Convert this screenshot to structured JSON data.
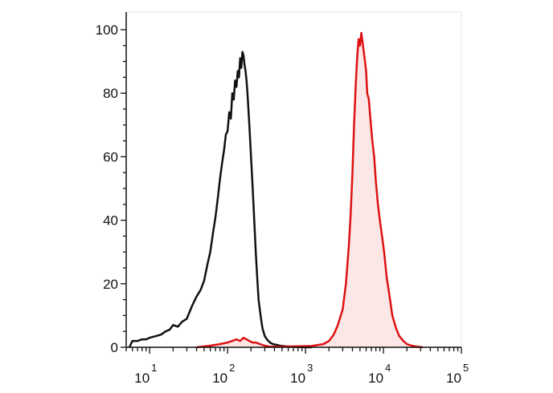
{
  "chart_data": {
    "type": "area",
    "title": "",
    "xlabel": "",
    "ylabel": "",
    "x_scale": "log",
    "xlim": [
      5,
      100000
    ],
    "ylim": [
      0,
      100
    ],
    "x_tick_labels": [
      {
        "base": "10",
        "exp": "1",
        "value": 10
      },
      {
        "base": "10",
        "exp": "2",
        "value": 100
      },
      {
        "base": "10",
        "exp": "3",
        "value": 1000
      },
      {
        "base": "10",
        "exp": "4",
        "value": 10000
      },
      {
        "base": "10",
        "exp": "5",
        "value": 100000
      }
    ],
    "y_ticks": [
      "0",
      "20",
      "40",
      "60",
      "80",
      "100"
    ],
    "grid": false,
    "legend": "none",
    "series": [
      {
        "color": "#111111",
        "fill": "none",
        "x": [
          5.5,
          6,
          7,
          8,
          9,
          10,
          12,
          14,
          16,
          18,
          20,
          23,
          26,
          30,
          35,
          40,
          45,
          50,
          55,
          60,
          65,
          70,
          75,
          80,
          85,
          90,
          95,
          100,
          105,
          110,
          115,
          120,
          125,
          130,
          135,
          140,
          145,
          150,
          155,
          160,
          165,
          170,
          175,
          180,
          190,
          200,
          210,
          220,
          230,
          240,
          250,
          265,
          280,
          300,
          320,
          350,
          380,
          420,
          470,
          550,
          650,
          800,
          1000,
          1200
        ],
        "y": [
          0,
          2,
          2,
          2.5,
          2.5,
          3,
          3.5,
          4,
          5,
          5.5,
          7,
          6.5,
          8,
          9,
          13,
          16,
          18,
          21,
          26,
          30,
          36,
          41,
          47,
          53,
          58,
          62,
          67,
          68,
          74,
          72,
          80,
          78,
          84,
          82,
          87,
          85,
          91,
          88,
          93,
          92,
          89,
          87,
          84,
          80,
          70,
          60,
          50,
          40,
          30,
          22,
          15,
          10,
          6,
          3.5,
          2.5,
          1.5,
          1,
          0.8,
          0.5,
          0.3,
          0.2,
          0.1,
          0,
          0
        ]
      },
      {
        "color": "#dd1111",
        "fill": "rgba(240,120,120,0.18)",
        "x": [
          40,
          60,
          80,
          100,
          115,
          130,
          145,
          160,
          175,
          190,
          210,
          230,
          260,
          300,
          350,
          500,
          800,
          1200,
          1700,
          2000,
          2300,
          2600,
          3000,
          3300,
          3600,
          3800,
          4000,
          4200,
          4400,
          4600,
          4800,
          5000,
          5200,
          5400,
          5600,
          5800,
          6000,
          6200,
          6500,
          6800,
          7200,
          7600,
          8000,
          8500,
          9000,
          9600,
          10200,
          11000,
          12000,
          13000,
          14500,
          16000,
          18000,
          20000,
          23000,
          27000,
          32000
        ],
        "y": [
          0,
          0.5,
          1,
          1.5,
          2,
          2.5,
          2,
          3,
          2.5,
          2,
          1.5,
          1.5,
          1,
          0.5,
          0.2,
          0.2,
          0.3,
          0.4,
          1,
          2,
          4,
          7,
          12,
          20,
          32,
          42,
          55,
          70,
          82,
          91,
          97,
          95,
          99,
          96,
          93,
          90,
          87,
          80,
          78,
          72,
          65,
          60,
          52,
          45,
          40,
          35,
          30,
          22,
          16,
          10,
          6,
          3.5,
          2,
          1,
          0.5,
          0.2,
          0
        ]
      }
    ]
  }
}
